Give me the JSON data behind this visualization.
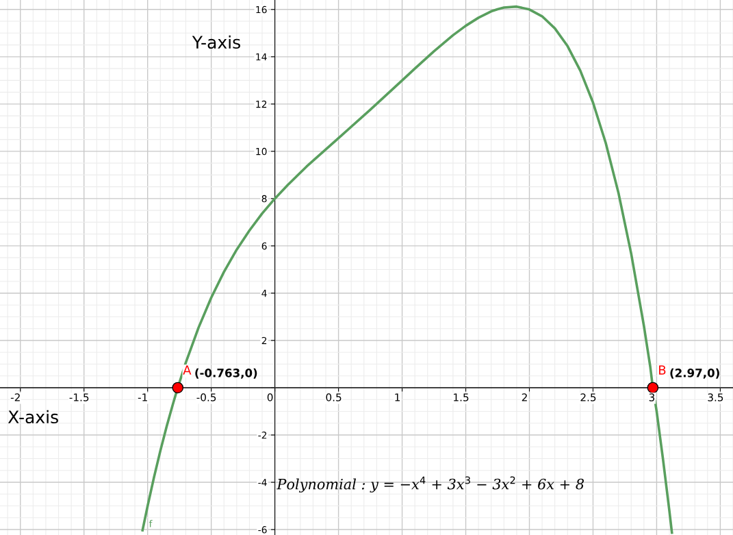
{
  "chart_data": {
    "type": "line",
    "xlabel": "X-axis",
    "ylabel": "Y-axis",
    "xlim": [
      -2.16,
      3.6
    ],
    "ylim": [
      -6.23,
      16.4
    ],
    "xticks": [
      -2,
      -1.5,
      -1,
      -0.5,
      0,
      0.5,
      1,
      1.5,
      2,
      2.5,
      3,
      3.5
    ],
    "yticks": [
      -6,
      -4,
      -2,
      {
        "value": 0,
        "label": null
      },
      2,
      4,
      6,
      8,
      10,
      12,
      14,
      16
    ],
    "grid": true,
    "legend": false,
    "series": [
      {
        "name": "f",
        "color": "#599f5e",
        "type": "line",
        "marker": "none",
        "x": [
          -1.04,
          -1.0,
          -0.95,
          -0.9,
          -0.85,
          -0.8,
          -0.763,
          -0.7,
          -0.6,
          -0.5,
          -0.4,
          -0.3,
          -0.2,
          -0.1,
          0,
          0.1,
          0.25,
          0.5,
          0.75,
          1.0,
          1.1,
          1.25,
          1.4,
          1.5,
          1.6,
          1.7,
          1.75,
          1.8,
          1.9,
          2.0,
          2.1,
          2.2,
          2.3,
          2.4,
          2.5,
          2.6,
          2.7,
          2.8,
          2.9,
          2.95,
          2.97,
          3.0,
          3.05,
          3.1,
          3.12
        ],
        "values": [
          -6.03,
          -5.0,
          -3.79,
          -2.67,
          -1.63,
          -0.67,
          0,
          1.06,
          2.54,
          3.81,
          4.9,
          5.84,
          6.65,
          7.37,
          8.0,
          8.57,
          9.36,
          10.56,
          11.76,
          13.0,
          13.5,
          14.23,
          14.91,
          15.31,
          15.65,
          15.92,
          16.01,
          16.08,
          16.12,
          16.0,
          15.71,
          15.2,
          14.45,
          13.41,
          12.06,
          10.35,
          8.24,
          5.67,
          2.61,
          0.88,
          0,
          -1.0,
          -3.03,
          -5.21,
          -6.13
        ]
      },
      {
        "name": "A",
        "color": "#ff0000",
        "type": "scatter",
        "marker": "circle",
        "x": [
          -0.763
        ],
        "values": [
          0
        ]
      },
      {
        "name": "B",
        "color": "#ff0000",
        "type": "scatter",
        "marker": "circle",
        "x": [
          2.97
        ],
        "values": [
          0
        ]
      }
    ],
    "annotations": [
      {
        "text": "(-0.763,0)",
        "x": -0.763,
        "y": 0
      },
      {
        "text": "(2.97,0)",
        "x": 2.97,
        "y": 0
      },
      "Polynomial : y = −x$^{4}$ + 3x$^{3}$ − 3x$^{2}$ + 6x + 8"
    ]
  }
}
